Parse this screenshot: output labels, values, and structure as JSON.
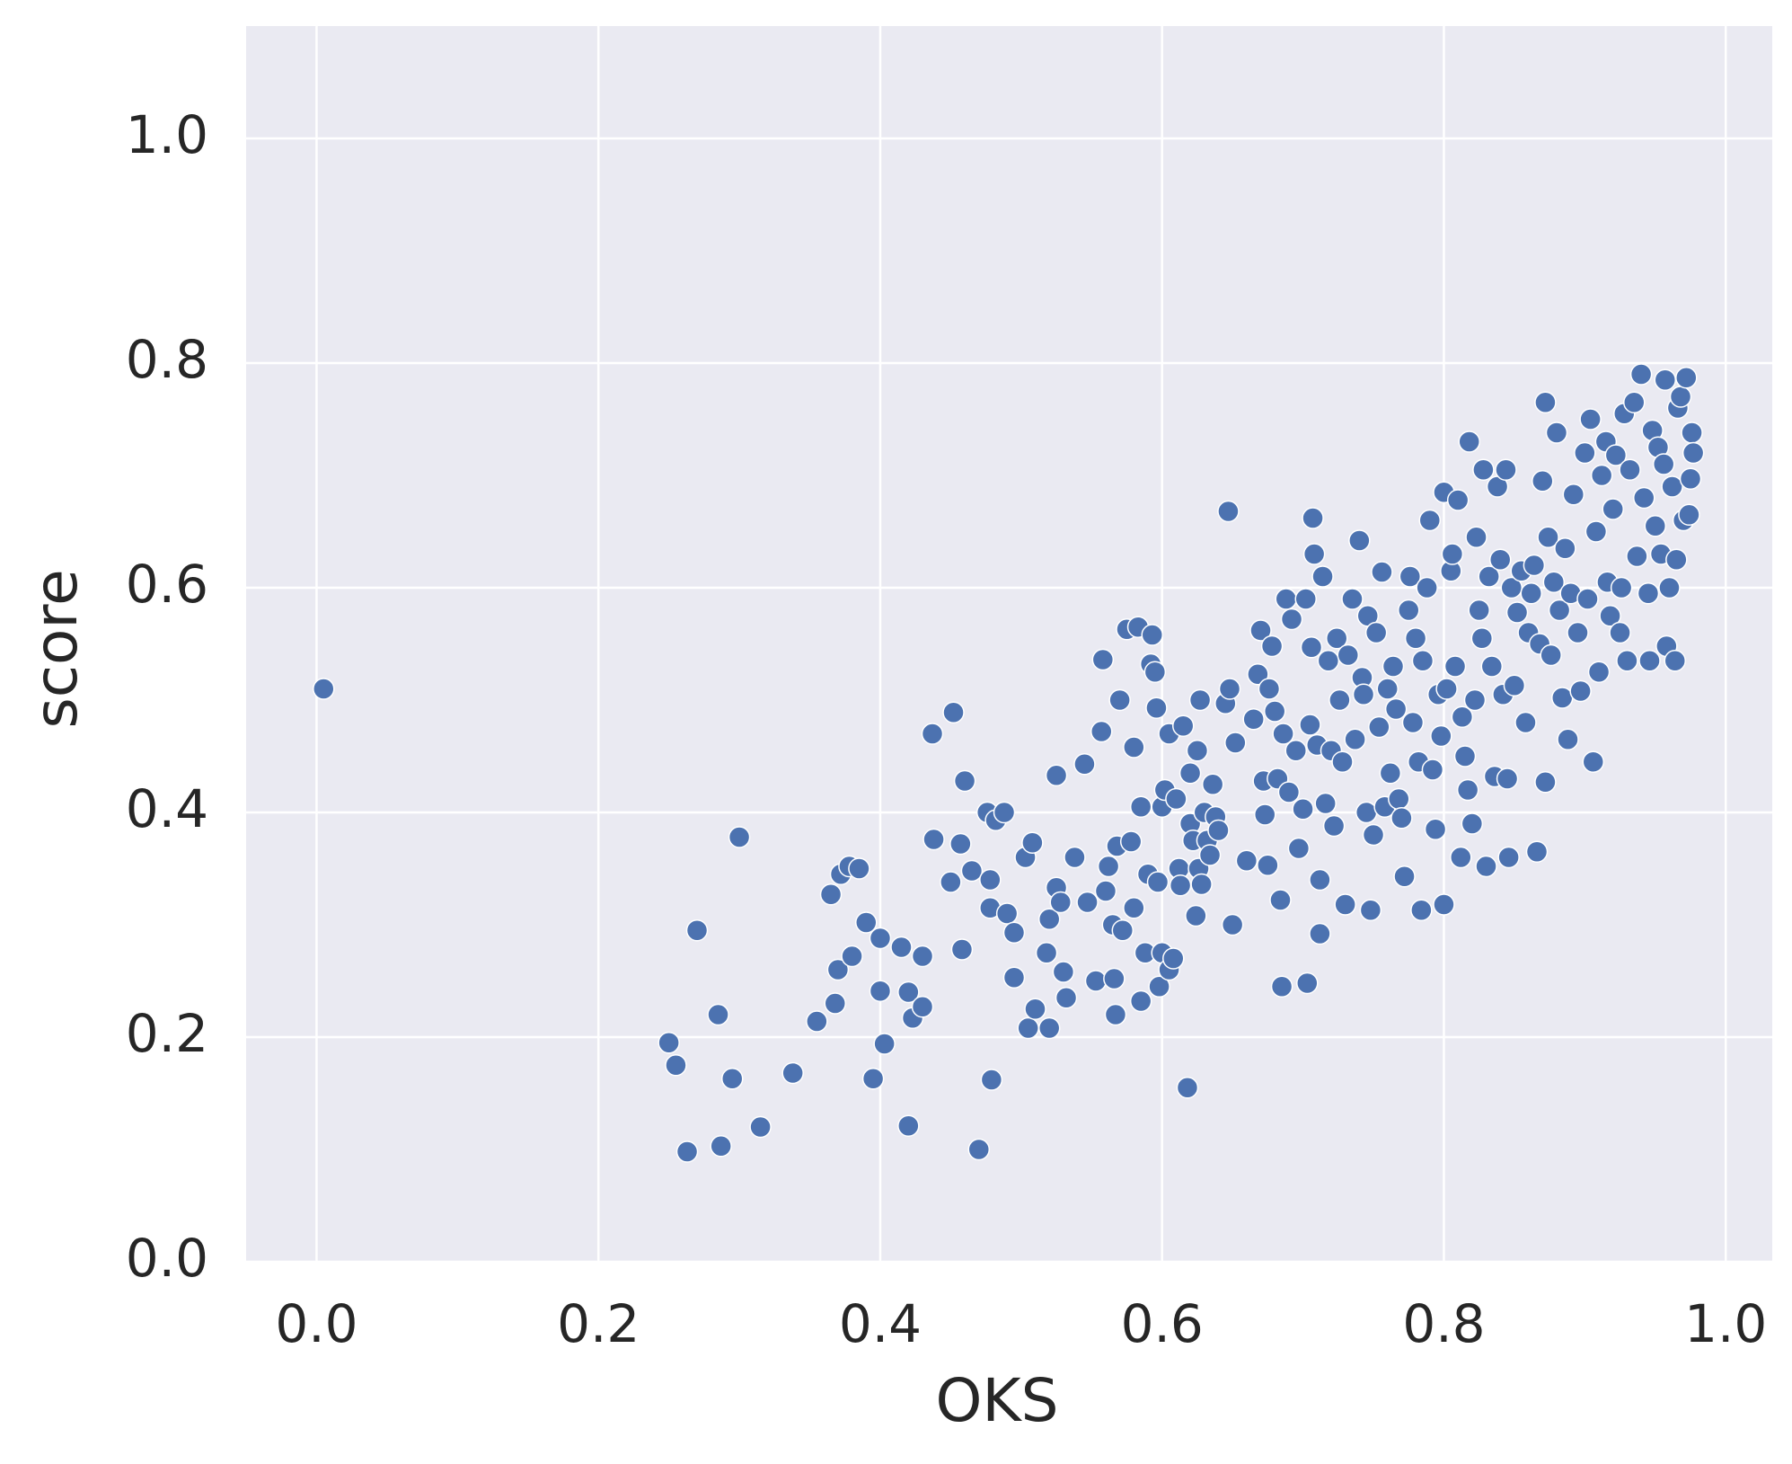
{
  "chart_data": {
    "type": "scatter",
    "xlabel": "OKS",
    "ylabel": "score",
    "color": "#4c72b0",
    "grid": true,
    "xlim": [
      -0.05,
      1.033
    ],
    "ylim": [
      0,
      1.1
    ],
    "xticks": [
      {
        "value": 0,
        "label": "0.0"
      },
      0.2,
      0.4,
      0.6,
      0.8,
      {
        "value": 1,
        "label": "1.0"
      }
    ],
    "yticks": [
      {
        "value": 0,
        "label": "0.0"
      },
      0.2,
      0.4,
      0.6,
      0.8,
      {
        "value": 1,
        "label": "1.0"
      }
    ],
    "x": [
      0.005,
      0.25,
      0.255,
      0.263,
      0.27,
      0.285,
      0.287,
      0.295,
      0.3,
      0.315,
      0.338,
      0.355,
      0.365,
      0.368,
      0.37,
      0.372,
      0.378,
      0.38,
      0.385,
      0.39,
      0.395,
      0.4,
      0.4,
      0.403,
      0.415,
      0.42,
      0.42,
      0.423,
      0.43,
      0.43,
      0.437,
      0.438,
      0.45,
      0.452,
      0.457,
      0.458,
      0.46,
      0.465,
      0.47,
      0.476,
      0.478,
      0.478,
      0.479,
      0.482,
      0.488,
      0.49,
      0.495,
      0.495,
      0.503,
      0.505,
      0.508,
      0.51,
      0.518,
      0.52,
      0.52,
      0.525,
      0.525,
      0.528,
      0.53,
      0.532,
      0.538,
      0.545,
      0.547,
      0.553,
      0.557,
      0.558,
      0.56,
      0.562,
      0.565,
      0.566,
      0.567,
      0.568,
      0.57,
      0.572,
      0.575,
      0.578,
      0.58,
      0.58,
      0.583,
      0.585,
      0.585,
      0.588,
      0.59,
      0.592,
      0.593,
      0.595,
      0.596,
      0.597,
      0.598,
      0.6,
      0.6,
      0.602,
      0.605,
      0.605,
      0.608,
      0.61,
      0.612,
      0.613,
      0.615,
      0.618,
      0.62,
      0.62,
      0.622,
      0.624,
      0.625,
      0.626,
      0.627,
      0.628,
      0.63,
      0.632,
      0.634,
      0.636,
      0.638,
      0.64,
      0.645,
      0.647,
      0.648,
      0.65,
      0.652,
      0.66,
      0.665,
      0.668,
      0.67,
      0.672,
      0.673,
      0.675,
      0.676,
      0.678,
      0.68,
      0.682,
      0.684,
      0.685,
      0.686,
      0.688,
      0.69,
      0.692,
      0.695,
      0.697,
      0.7,
      0.702,
      0.703,
      0.705,
      0.706,
      0.707,
      0.708,
      0.71,
      0.712,
      0.712,
      0.714,
      0.716,
      0.718,
      0.72,
      0.722,
      0.724,
      0.726,
      0.728,
      0.73,
      0.732,
      0.735,
      0.737,
      0.74,
      0.742,
      0.743,
      0.745,
      0.746,
      0.748,
      0.75,
      0.752,
      0.754,
      0.756,
      0.758,
      0.76,
      0.762,
      0.764,
      0.766,
      0.768,
      0.77,
      0.772,
      0.775,
      0.776,
      0.778,
      0.78,
      0.782,
      0.784,
      0.785,
      0.788,
      0.79,
      0.792,
      0.794,
      0.796,
      0.798,
      0.8,
      0.8,
      0.802,
      0.805,
      0.806,
      0.808,
      0.81,
      0.812,
      0.813,
      0.815,
      0.817,
      0.818,
      0.82,
      0.822,
      0.823,
      0.825,
      0.827,
      0.828,
      0.83,
      0.832,
      0.834,
      0.836,
      0.838,
      0.84,
      0.842,
      0.844,
      0.845,
      0.846,
      0.848,
      0.85,
      0.852,
      0.855,
      0.858,
      0.86,
      0.862,
      0.864,
      0.866,
      0.868,
      0.87,
      0.872,
      0.872,
      0.874,
      0.876,
      0.878,
      0.88,
      0.882,
      0.884,
      0.886,
      0.888,
      0.89,
      0.892,
      0.895,
      0.897,
      0.9,
      0.902,
      0.904,
      0.906,
      0.908,
      0.91,
      0.912,
      0.915,
      0.916,
      0.918,
      0.92,
      0.922,
      0.925,
      0.926,
      0.928,
      0.93,
      0.932,
      0.935,
      0.937,
      0.94,
      0.942,
      0.945,
      0.946,
      0.948,
      0.95,
      0.952,
      0.954,
      0.956,
      0.957,
      0.958,
      0.96,
      0.962,
      0.964,
      0.965,
      0.966,
      0.968,
      0.97,
      0.972,
      0.974,
      0.975,
      0.976,
      0.977
    ],
    "values": [
      0.51,
      0.195,
      0.175,
      0.098,
      0.295,
      0.22,
      0.103,
      0.163,
      0.378,
      0.12,
      0.168,
      0.214,
      0.327,
      0.23,
      0.26,
      0.345,
      0.352,
      0.272,
      0.35,
      0.302,
      0.163,
      0.288,
      0.241,
      0.194,
      0.28,
      0.24,
      0.121,
      0.217,
      0.272,
      0.227,
      0.47,
      0.376,
      0.338,
      0.489,
      0.372,
      0.278,
      0.428,
      0.348,
      0.1,
      0.4,
      0.34,
      0.315,
      0.162,
      0.393,
      0.4,
      0.31,
      0.293,
      0.253,
      0.36,
      0.208,
      0.373,
      0.225,
      0.275,
      0.208,
      0.305,
      0.433,
      0.333,
      0.32,
      0.258,
      0.235,
      0.36,
      0.443,
      0.32,
      0.25,
      0.472,
      0.536,
      0.33,
      0.352,
      0.3,
      0.252,
      0.22,
      0.37,
      0.5,
      0.295,
      0.563,
      0.374,
      0.458,
      0.315,
      0.565,
      0.405,
      0.232,
      0.275,
      0.345,
      0.532,
      0.558,
      0.525,
      0.493,
      0.338,
      0.245,
      0.405,
      0.275,
      0.42,
      0.26,
      0.47,
      0.27,
      0.412,
      0.35,
      0.335,
      0.477,
      0.155,
      0.435,
      0.39,
      0.375,
      0.308,
      0.455,
      0.35,
      0.5,
      0.336,
      0.4,
      0.375,
      0.362,
      0.425,
      0.396,
      0.384,
      0.497,
      0.668,
      0.51,
      0.3,
      0.462,
      0.357,
      0.483,
      0.523,
      0.562,
      0.428,
      0.398,
      0.353,
      0.51,
      0.548,
      0.49,
      0.43,
      0.322,
      0.245,
      0.47,
      0.59,
      0.418,
      0.572,
      0.455,
      0.368,
      0.403,
      0.59,
      0.248,
      0.478,
      0.547,
      0.662,
      0.63,
      0.46,
      0.292,
      0.34,
      0.61,
      0.408,
      0.535,
      0.455,
      0.388,
      0.555,
      0.5,
      0.445,
      0.318,
      0.54,
      0.59,
      0.465,
      0.642,
      0.52,
      0.505,
      0.4,
      0.575,
      0.313,
      0.38,
      0.56,
      0.476,
      0.614,
      0.405,
      0.51,
      0.435,
      0.53,
      0.492,
      0.412,
      0.395,
      0.343,
      0.58,
      0.61,
      0.48,
      0.555,
      0.445,
      0.313,
      0.535,
      0.6,
      0.66,
      0.438,
      0.385,
      0.505,
      0.468,
      0.318,
      0.685,
      0.51,
      0.615,
      0.63,
      0.53,
      0.678,
      0.36,
      0.485,
      0.45,
      0.42,
      0.73,
      0.39,
      0.5,
      0.645,
      0.58,
      0.555,
      0.705,
      0.352,
      0.61,
      0.53,
      0.432,
      0.69,
      0.625,
      0.505,
      0.705,
      0.43,
      0.36,
      0.6,
      0.513,
      0.578,
      0.615,
      0.48,
      0.56,
      0.595,
      0.62,
      0.365,
      0.55,
      0.695,
      0.765,
      0.427,
      0.645,
      0.54,
      0.605,
      0.738,
      0.58,
      0.502,
      0.635,
      0.465,
      0.595,
      0.683,
      0.56,
      0.508,
      0.72,
      0.59,
      0.75,
      0.445,
      0.65,
      0.525,
      0.7,
      0.73,
      0.605,
      0.575,
      0.67,
      0.718,
      0.56,
      0.6,
      0.755,
      0.535,
      0.705,
      0.765,
      0.628,
      0.79,
      0.68,
      0.595,
      0.535,
      0.74,
      0.655,
      0.725,
      0.63,
      0.71,
      0.785,
      0.548,
      0.6,
      0.69,
      0.535,
      0.625,
      0.76,
      0.77,
      0.66,
      0.787,
      0.665,
      0.697,
      0.738,
      0.72
    ]
  }
}
